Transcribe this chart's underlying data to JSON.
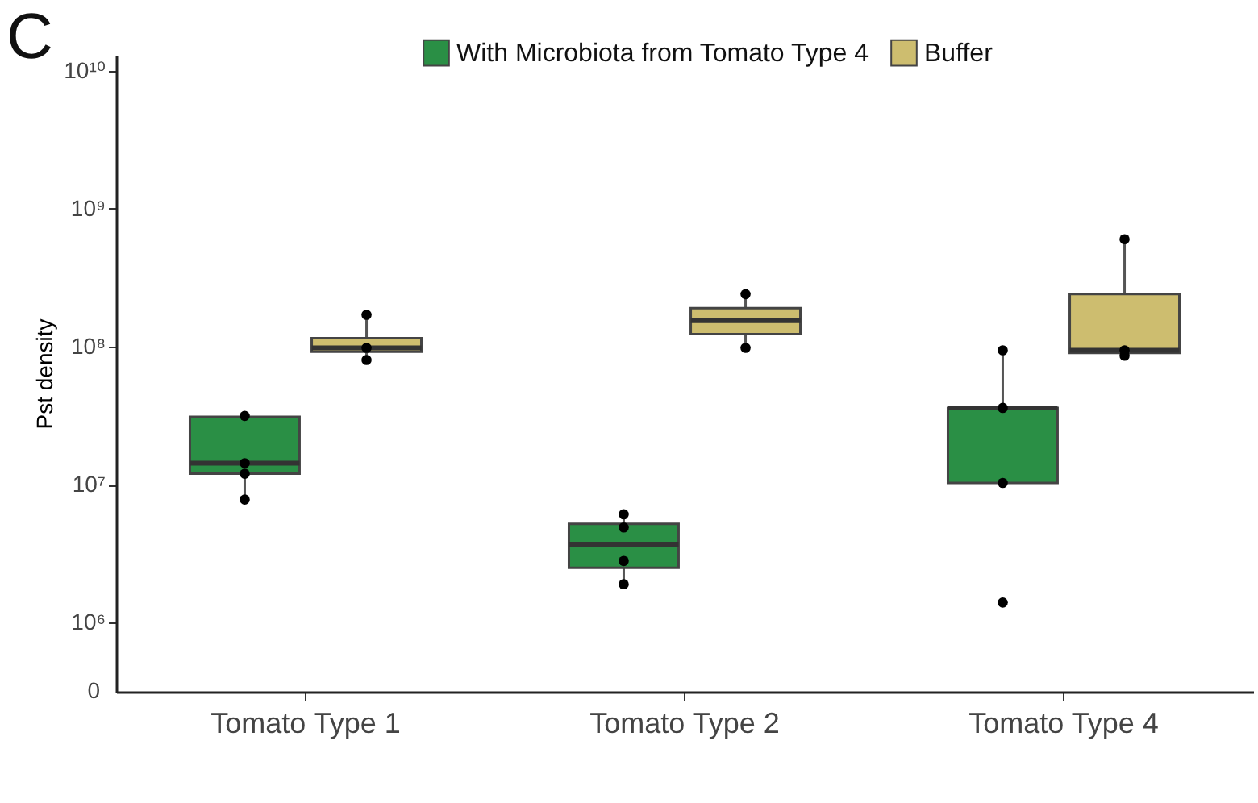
{
  "chart_data": {
    "type": "box",
    "title": "C",
    "ylabel": "Pst density",
    "categories": [
      "Tomato Type 1",
      "Tomato Type 2",
      "Tomato Type 4"
    ],
    "log": true,
    "ylim": [
      0,
      13000000000
    ],
    "yticks": [
      0,
      {
        "value": 1000000,
        "label": "10⁶"
      },
      {
        "value": 10000000,
        "label": "10⁷"
      },
      {
        "value": 100000000,
        "label": "10⁸"
      },
      {
        "value": 1000000000,
        "label": "10⁹"
      },
      {
        "value": 10000000000,
        "label": "10¹⁰"
      }
    ],
    "grid": false,
    "legend": "top",
    "series": [
      {
        "name": "With Microbiota from Tomato Type 4",
        "color": "#2a8f45",
        "boxes": [
          {
            "low": 7800000,
            "q1": 12000000,
            "median": 14300000,
            "q3": 31000000,
            "high": 31000000
          },
          {
            "low": 1900000,
            "q1": 2500000,
            "median": 3700000,
            "q3": 5200000,
            "high": 6100000
          },
          {
            "low": 10300000,
            "q1": 10300000,
            "median": 36000000,
            "q3": 36000000,
            "high": 94000000
          }
        ]
      },
      {
        "name": "Buffer",
        "color": "#cdbd6f",
        "boxes": [
          {
            "low": 80000000,
            "q1": 92000000,
            "median": 98000000,
            "q3": 115000000,
            "high": 170000000
          },
          {
            "low": 98000000,
            "q1": 123000000,
            "median": 154000000,
            "q3": 190000000,
            "high": 240000000
          },
          {
            "low": 86000000,
            "q1": 90000000,
            "median": 94000000,
            "q3": 240000000,
            "high": 600000000
          }
        ]
      },
      {
        "type": "scatter",
        "color": "#000000",
        "x": [
          "Tomato Type 1",
          "Tomato Type 1",
          "Tomato Type 1",
          "Tomato Type 1",
          "Tomato Type 2",
          "Tomato Type 2",
          "Tomato Type 2",
          "Tomato Type 2",
          "Tomato Type 4",
          "Tomato Type 4",
          "Tomato Type 4",
          "Tomato Type 4"
        ],
        "values": [
          31500000,
          14300000,
          12000000,
          7800000,
          6100000,
          4900000,
          2800000,
          1900000,
          94000000,
          36000000,
          10300000,
          1400000
        ]
      },
      {
        "type": "scatter",
        "color": "#000000",
        "x": [
          "Tomato Type 1",
          "Tomato Type 1",
          "Tomato Type 1",
          "Tomato Type 2",
          "Tomato Type 2",
          "Tomato Type 4",
          "Tomato Type 4",
          "Tomato Type 4"
        ],
        "values": [
          170000000,
          98000000,
          80000000,
          240000000,
          98000000,
          600000000,
          94000000,
          86000000
        ]
      }
    ]
  }
}
